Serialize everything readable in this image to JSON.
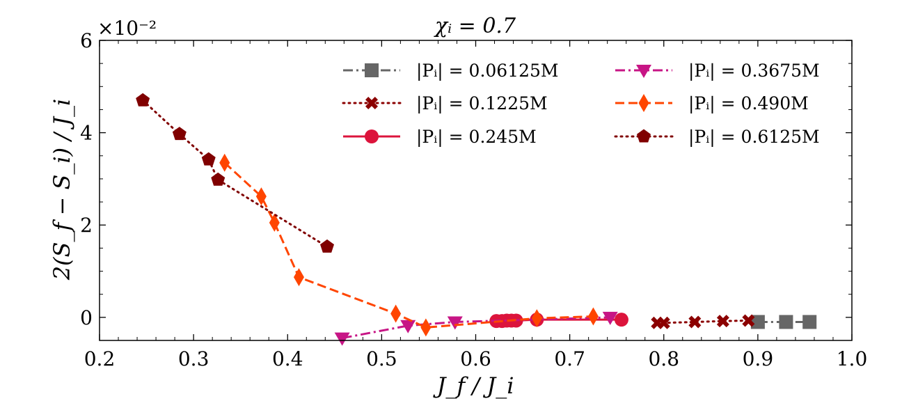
{
  "chart_data": {
    "type": "line",
    "title": "χᵢ = 0.7",
    "xlabel": "J_f / J_i",
    "ylabel": "2(S_f − S_i) / J_i",
    "y_multiplier_label": "×10⁻²",
    "xlim": [
      0.2,
      1.0
    ],
    "ylim": [
      -0.5,
      6
    ],
    "xticks": [
      0.2,
      0.3,
      0.4,
      0.5,
      0.6,
      0.7,
      0.8,
      0.9,
      1.0
    ],
    "xtick_labels": [
      "0.2",
      "0.3",
      "0.4",
      "0.5",
      "0.6",
      "0.7",
      "0.8",
      "0.9",
      "1.0"
    ],
    "yticks": [
      0,
      2,
      4,
      6
    ],
    "ytick_labels": [
      "0",
      "2",
      "4",
      "6"
    ],
    "grid": false,
    "legend_position": "top-right",
    "series": [
      {
        "name": "|Pᵢ| = 0.06125M",
        "color": "#666666",
        "marker": "square",
        "linestyle": "dashdot",
        "x": [
          0.9,
          0.93,
          0.955
        ],
        "y": [
          -0.1,
          -0.1,
          -0.1
        ]
      },
      {
        "name": "|Pᵢ| = 0.1225M",
        "color": "#8b0000",
        "marker": "x",
        "linestyle": "dotted",
        "x": [
          0.793,
          0.8,
          0.833,
          0.863,
          0.89
        ],
        "y": [
          -0.12,
          -0.12,
          -0.1,
          -0.08,
          -0.07
        ]
      },
      {
        "name": "|Pᵢ| = 0.245M",
        "color": "#dc143c",
        "marker": "circle",
        "linestyle": "solid",
        "x": [
          0.622,
          0.628,
          0.633,
          0.638,
          0.643,
          0.665,
          0.755
        ],
        "y": [
          -0.08,
          -0.08,
          -0.07,
          -0.07,
          -0.07,
          -0.05,
          -0.05
        ]
      },
      {
        "name": "|Pᵢ| = 0.3675M",
        "color": "#c71585",
        "marker": "triangle-down",
        "linestyle": "dashdot",
        "x": [
          0.458,
          0.528,
          0.578,
          0.743
        ],
        "y": [
          -0.45,
          -0.18,
          -0.1,
          0.0
        ]
      },
      {
        "name": "|Pᵢ| = 0.490M",
        "color": "#ff4500",
        "marker": "diamond",
        "linestyle": "dashed",
        "x": [
          0.333,
          0.372,
          0.386,
          0.412,
          0.515,
          0.547,
          0.665,
          0.725
        ],
        "y": [
          3.35,
          2.62,
          2.05,
          0.87,
          0.08,
          -0.22,
          -0.02,
          0.02
        ]
      },
      {
        "name": "|Pᵢ| = 0.6125M",
        "color": "#800000",
        "marker": "pentagon",
        "linestyle": "dotted",
        "x": [
          0.246,
          0.285,
          0.316,
          0.326,
          0.442
        ],
        "y": [
          4.7,
          3.97,
          3.42,
          2.98,
          1.53
        ]
      }
    ]
  }
}
